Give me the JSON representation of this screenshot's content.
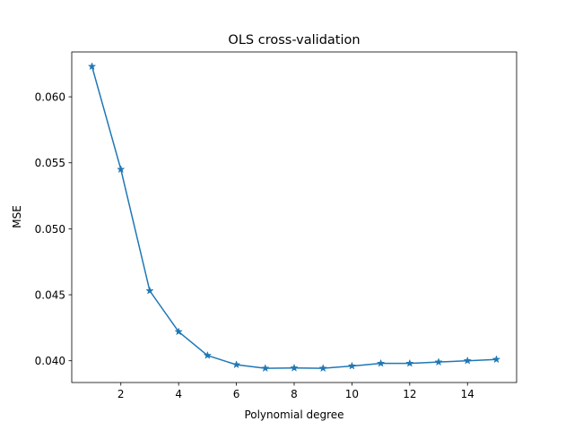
{
  "chart_data": {
    "type": "line",
    "title": "OLS cross-validation",
    "xlabel": "Polynomial degree",
    "ylabel": "MSE",
    "xlim": [
      0.3,
      15.7
    ],
    "ylim": [
      0.03835,
      0.0634
    ],
    "xticks": [
      2,
      4,
      6,
      8,
      10,
      12,
      14
    ],
    "xtick_labels": [
      "2",
      "4",
      "6",
      "8",
      "10",
      "12",
      "14"
    ],
    "yticks": [
      0.04,
      0.045,
      0.05,
      0.055,
      0.06
    ],
    "ytick_labels": [
      "0.040",
      "0.045",
      "0.050",
      "0.055",
      "0.060"
    ],
    "grid": false,
    "series": [
      {
        "marker": "star",
        "color": "#1f77b4",
        "x": [
          1,
          2,
          3,
          4,
          5,
          6,
          7,
          8,
          9,
          10,
          11,
          12,
          13,
          14,
          15
        ],
        "y": [
          0.0623,
          0.0545,
          0.0453,
          0.0422,
          0.0404,
          0.0397,
          0.03943,
          0.03945,
          0.03943,
          0.0396,
          0.0398,
          0.0398,
          0.0399,
          0.04,
          0.0401
        ]
      }
    ]
  }
}
